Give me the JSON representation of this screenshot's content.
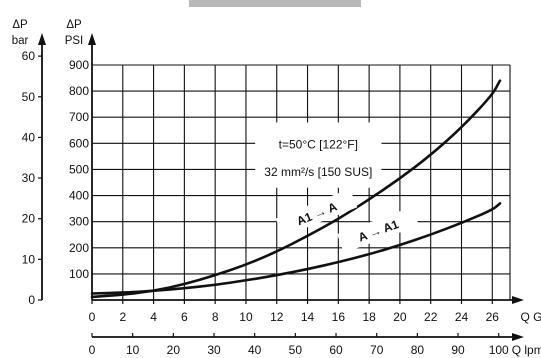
{
  "chart_data": {
    "type": "line",
    "y_left": {
      "unit_top": "ΔP",
      "unit_bottom": "bar",
      "ticks": [
        0,
        10,
        20,
        30,
        40,
        50,
        60
      ],
      "range": [
        0,
        62
      ]
    },
    "y_right": {
      "unit_top": "ΔP",
      "unit_bottom": "PSI",
      "ticks": [
        100,
        200,
        300,
        400,
        500,
        600,
        700,
        800,
        900
      ],
      "range": [
        0,
        900
      ]
    },
    "x_top": {
      "label": "Q GPM",
      "ticks": [
        0,
        2,
        4,
        6,
        8,
        10,
        12,
        14,
        16,
        18,
        20,
        22,
        24,
        26
      ],
      "range": [
        0,
        27.7
      ]
    },
    "x_bottom": {
      "label": "Q lpm",
      "ticks": [
        0,
        10,
        20,
        30,
        40,
        50,
        60,
        70,
        80,
        90,
        100
      ],
      "range": [
        0,
        104.8
      ]
    },
    "annotations": [
      "t=50°C [122°F]",
      "32 mm²/s [150 SUS]"
    ],
    "series": [
      {
        "name": "A1 → A",
        "x_gpm": [
          0,
          2,
          4,
          6,
          8,
          10,
          12,
          14,
          16,
          18,
          20,
          22,
          24,
          26,
          26.5
        ],
        "y_psi": [
          12,
          20,
          35,
          60,
          95,
          135,
          185,
          245,
          310,
          385,
          465,
          555,
          660,
          785,
          840
        ]
      },
      {
        "name": "A → A1",
        "x_gpm": [
          0,
          2,
          4,
          6,
          8,
          10,
          12,
          14,
          16,
          18,
          20,
          22,
          24,
          26,
          26.5
        ],
        "y_psi": [
          25,
          28,
          35,
          45,
          58,
          75,
          95,
          118,
          145,
          175,
          210,
          250,
          295,
          345,
          370
        ]
      }
    ],
    "grid": true
  },
  "colors": {
    "line": "#111111",
    "grid": "#111111",
    "top_strip": "#b8b8b8"
  }
}
